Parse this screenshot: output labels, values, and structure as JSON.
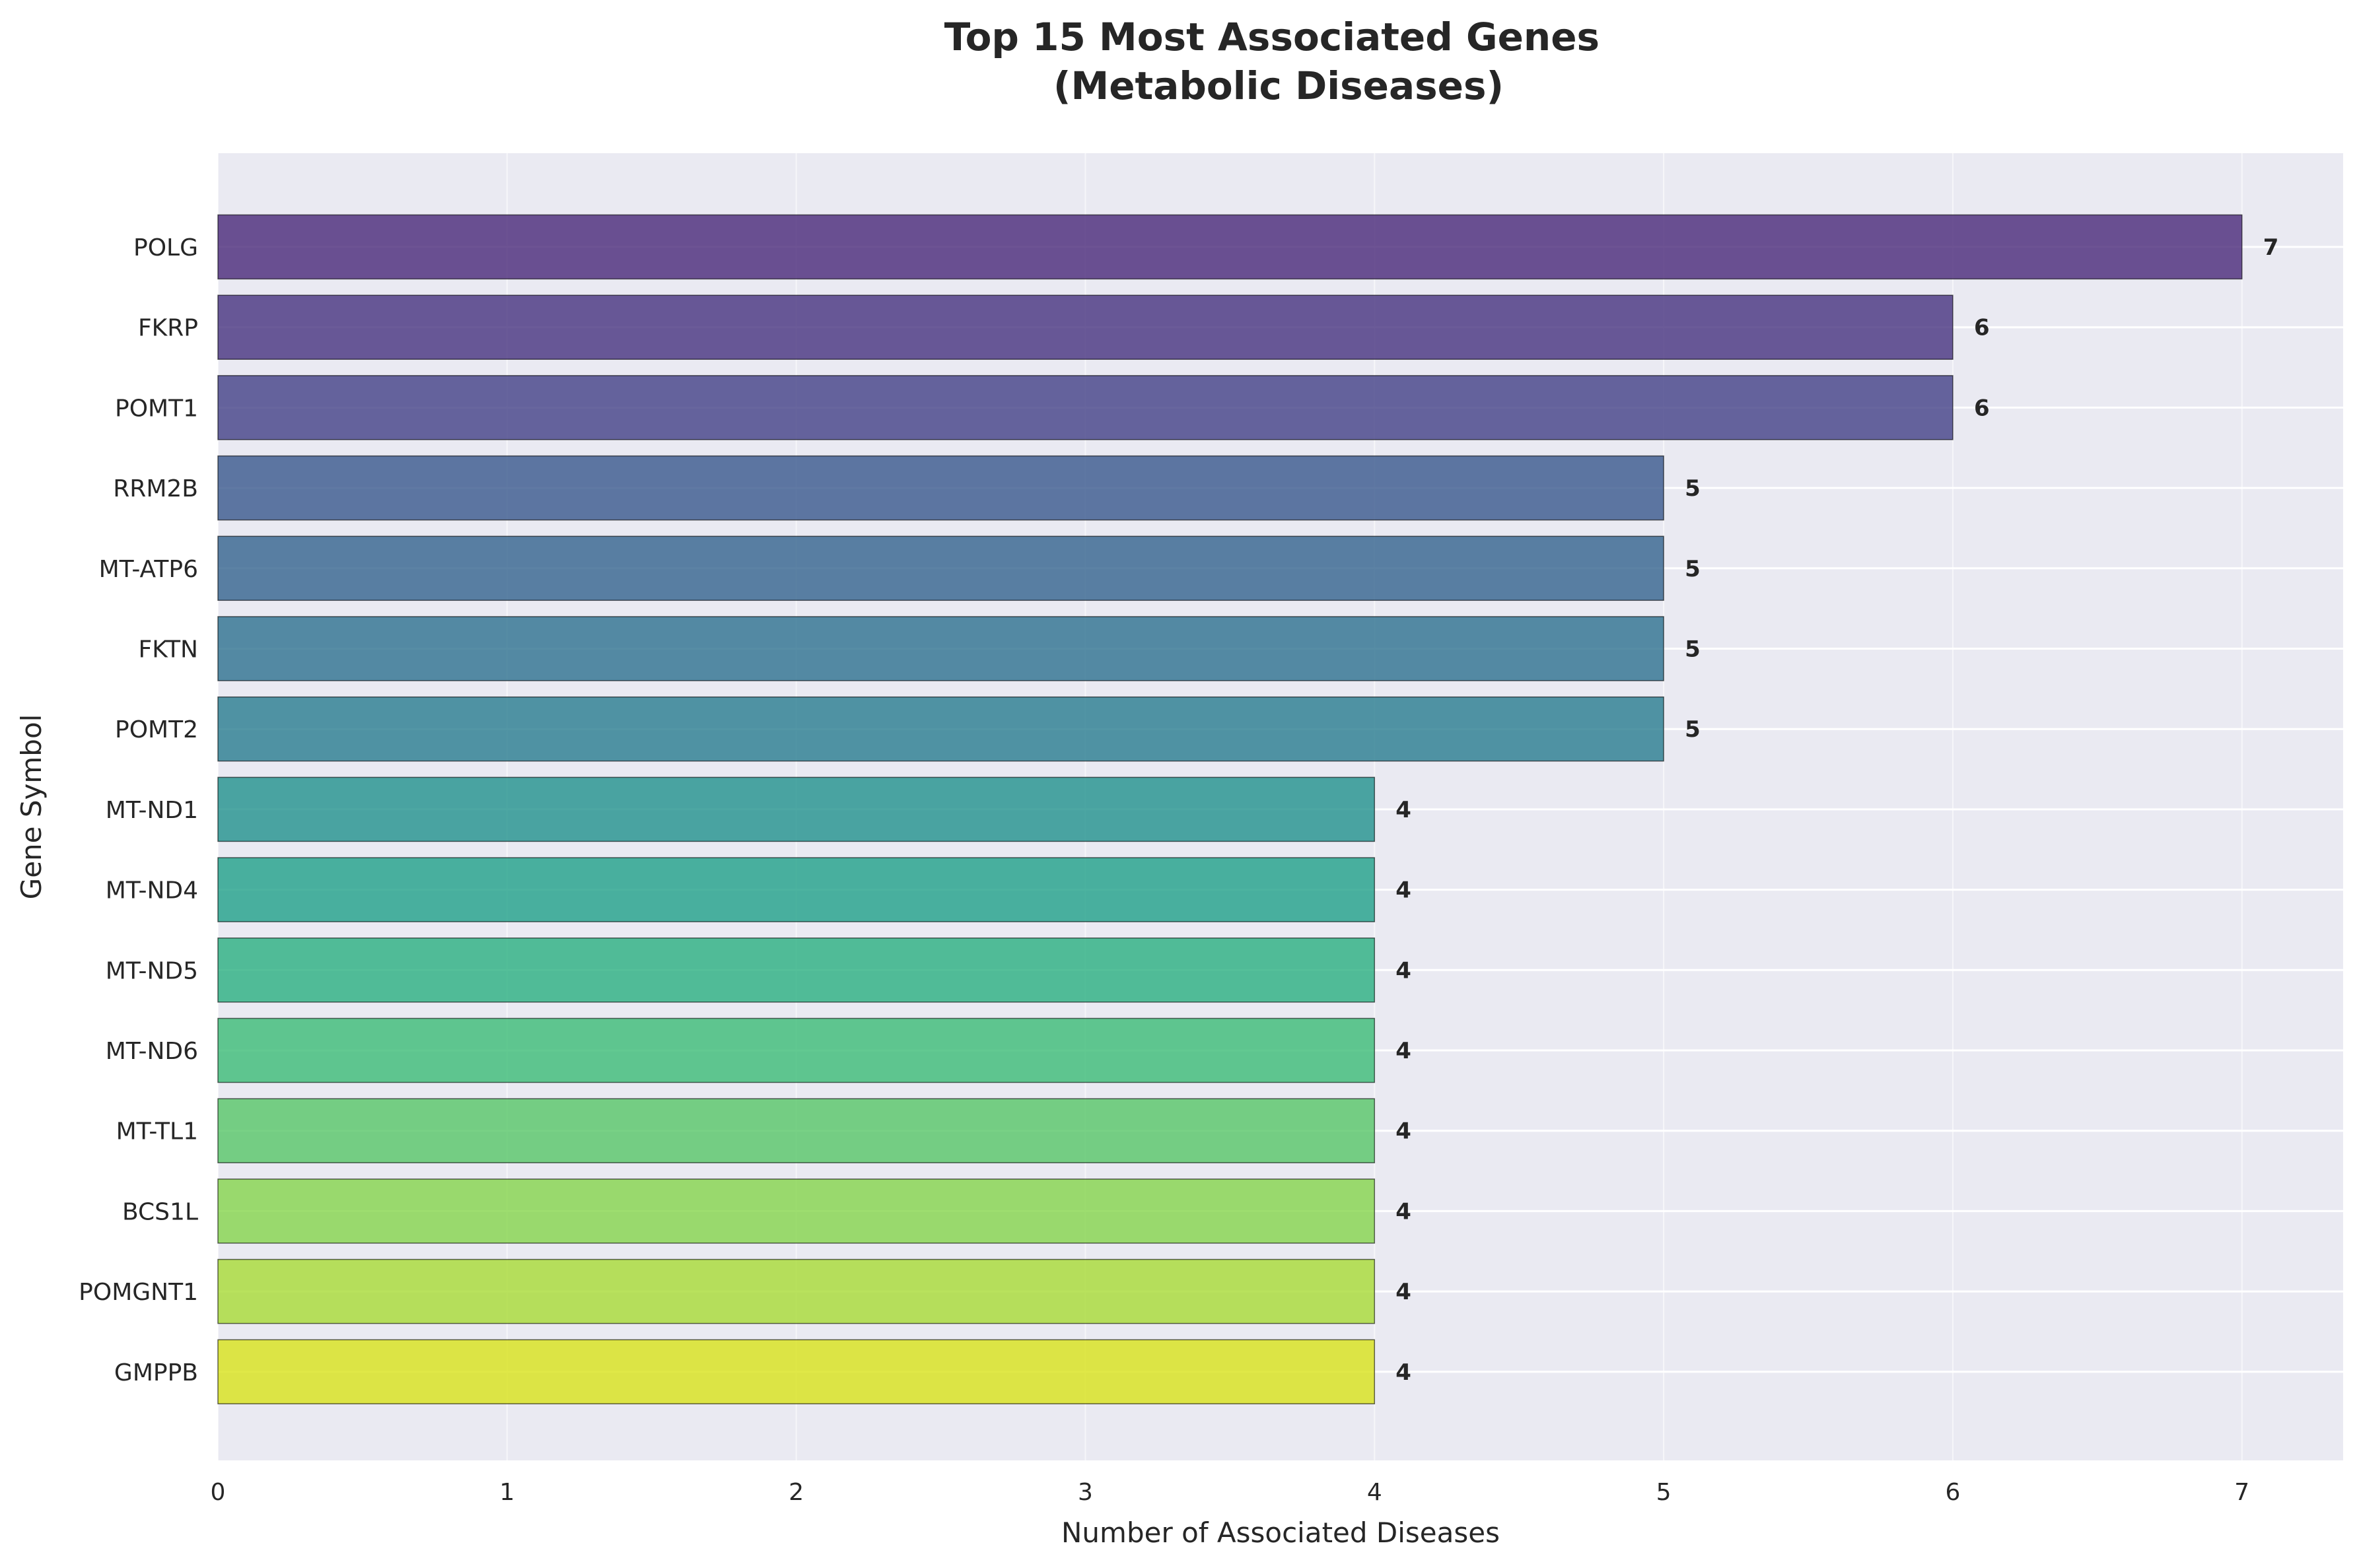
{
  "chart_data": {
    "type": "bar",
    "orientation": "horizontal",
    "title": "Top 15 Most Associated Genes\n(Metabolic Diseases)",
    "xlabel": "Number of Associated Diseases",
    "ylabel": "Gene Symbol",
    "categories": [
      "POLG",
      "FKRP",
      "POMT1",
      "RRM2B",
      "MT-ATP6",
      "FKTN",
      "POMT2",
      "MT-ND1",
      "MT-ND4",
      "MT-ND5",
      "MT-ND6",
      "MT-TL1",
      "BCS1L",
      "POMGNT1",
      "GMPPB"
    ],
    "values": [
      7,
      6,
      6,
      5,
      5,
      5,
      5,
      4,
      4,
      4,
      4,
      4,
      4,
      4,
      4
    ],
    "value_labels": [
      "7",
      "6",
      "6",
      "5",
      "5",
      "5",
      "5",
      "4",
      "4",
      "4",
      "4",
      "4",
      "4",
      "4",
      "4"
    ],
    "colors": [
      "#482878",
      "#46327e",
      "#424086",
      "#38588c",
      "#33638d",
      "#2d708e",
      "#287c8e",
      "#21918c",
      "#1fa088",
      "#29af7f",
      "#3bbb75",
      "#56c667",
      "#84d44b",
      "#a8db34",
      "#d8e219"
    ],
    "xlim": [
      0,
      7.35
    ],
    "xticks": [
      "0",
      "1",
      "2",
      "3",
      "4",
      "5",
      "6",
      "7"
    ],
    "grid": true,
    "legend": "none"
  }
}
